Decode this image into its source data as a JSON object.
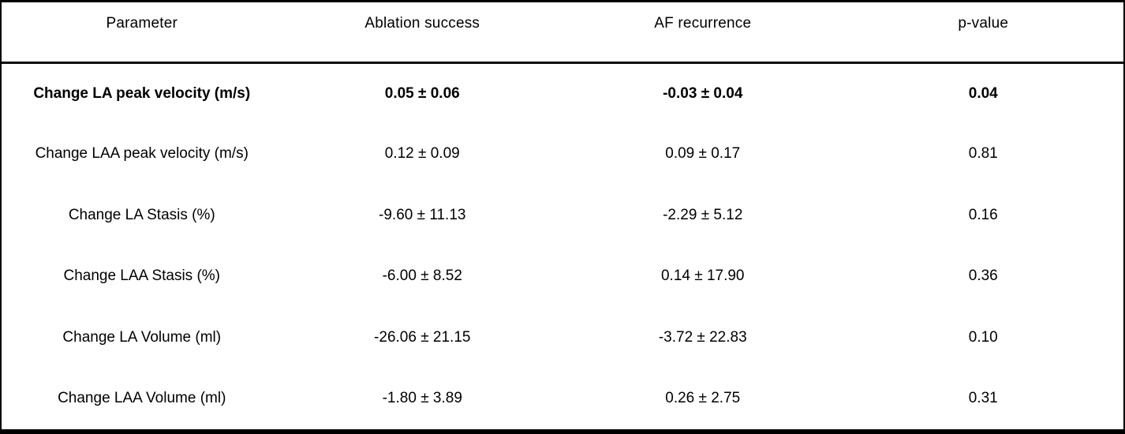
{
  "chart_data": {
    "type": "table",
    "columns": [
      "Parameter",
      "Ablation success",
      "AF recurrence",
      "p-value"
    ],
    "rows": [
      {
        "parameter": "Change LA peak velocity (m/s)",
        "ablation_success": "0.05 ± 0.06",
        "af_recurrence": "-0.03 ± 0.04",
        "p_value": "0.04",
        "bold": true
      },
      {
        "parameter": "Change LAA peak velocity (m/s)",
        "ablation_success": "0.12 ± 0.09",
        "af_recurrence": "0.09 ± 0.17",
        "p_value": "0.81",
        "bold": false
      },
      {
        "parameter": "Change LA Stasis (%)",
        "ablation_success": "-9.60 ± 11.13",
        "af_recurrence": "-2.29 ± 5.12",
        "p_value": "0.16",
        "bold": false
      },
      {
        "parameter": "Change LAA Stasis (%)",
        "ablation_success": "-6.00 ± 8.52",
        "af_recurrence": "0.14 ± 17.90",
        "p_value": "0.36",
        "bold": false
      },
      {
        "parameter": "Change LA Volume (ml)",
        "ablation_success": "-26.06 ± 21.15",
        "af_recurrence": "-3.72 ± 22.83",
        "p_value": "0.10",
        "bold": false
      },
      {
        "parameter": "Change LAA Volume (ml)",
        "ablation_success": "-1.80 ± 3.89",
        "af_recurrence": "0.26 ± 2.75",
        "p_value": "0.31",
        "bold": false
      }
    ]
  },
  "colors": {
    "border": "#000000",
    "text": "#000000",
    "background": "#ffffff"
  }
}
